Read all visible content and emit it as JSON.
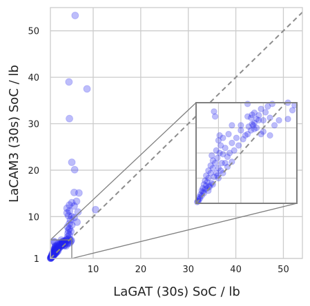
{
  "chart_data": {
    "type": "scatter",
    "title": "",
    "xlabel": "LaGAT (30s) SoC / lb",
    "ylabel": "LaCAM3 (30s) SoC / lb",
    "xlim": [
      1,
      54
    ],
    "ylim": [
      1,
      55
    ],
    "x_ticks": [
      10,
      20,
      30,
      40,
      50
    ],
    "y_ticks": [
      1,
      10,
      20,
      30,
      40,
      50
    ],
    "grid": true,
    "legend": "none",
    "reference_line": "y = x",
    "point_color": "#2424f0",
    "inset": {
      "xlim": [
        1,
        5.5
      ],
      "ylim": [
        1,
        5
      ],
      "placement": "right-middle"
    },
    "series": [
      {
        "values": [
          [
            6.2,
            53.3
          ],
          [
            4.9,
            39.0
          ],
          [
            8.7,
            37.5
          ],
          [
            5.0,
            31.1
          ],
          [
            5.5,
            21.7
          ],
          [
            6.1,
            20.1
          ],
          [
            6.0,
            15.2
          ],
          [
            7.0,
            15.1
          ],
          [
            6.5,
            13.3
          ],
          [
            5.5,
            13.0
          ],
          [
            5.0,
            12.5
          ],
          [
            4.5,
            11.8
          ],
          [
            6.0,
            12.3
          ],
          [
            10.5,
            11.5
          ],
          [
            5.0,
            11.2
          ],
          [
            6.8,
            11.0
          ],
          [
            4.5,
            10.8
          ],
          [
            4.8,
            10.2
          ],
          [
            5.5,
            10.0
          ],
          [
            6.0,
            9.8
          ],
          [
            5.2,
            9.3
          ],
          [
            6.6,
            8.8
          ],
          [
            5.0,
            8.5
          ],
          [
            5.5,
            8.2
          ],
          [
            4.6,
            7.8
          ],
          [
            5.0,
            7.4
          ],
          [
            4.8,
            7.0
          ],
          [
            5.3,
            6.8
          ],
          [
            4.7,
            6.4
          ],
          [
            5.0,
            6.0
          ],
          [
            4.6,
            5.6
          ],
          [
            4.9,
            5.3
          ],
          [
            4.5,
            5.1
          ],
          [
            5.1,
            5.0
          ],
          [
            3.3,
            4.95
          ],
          [
            4.4,
            4.95
          ],
          [
            4.2,
            4.85
          ],
          [
            3.9,
            4.75
          ],
          [
            1.8,
            4.65
          ],
          [
            4.1,
            4.62
          ],
          [
            3.5,
            4.52
          ],
          [
            1.85,
            4.45
          ],
          [
            3.3,
            4.45
          ],
          [
            3.45,
            4.4
          ],
          [
            3.7,
            4.35
          ],
          [
            3.8,
            4.3
          ],
          [
            4.3,
            4.4
          ],
          [
            4.7,
            4.3
          ],
          [
            5.1,
            4.35
          ],
          [
            3.6,
            4.2
          ],
          [
            3.5,
            4.15
          ],
          [
            3.55,
            4.1
          ],
          [
            3.35,
            4.05
          ],
          [
            3.0,
            4.1
          ],
          [
            2.6,
            4.1
          ],
          [
            3.7,
            4.0
          ],
          [
            3.6,
            3.95
          ],
          [
            3.45,
            3.9
          ],
          [
            4.0,
            3.85
          ],
          [
            3.9,
            3.75
          ],
          [
            4.3,
            3.7
          ],
          [
            3.3,
            3.75
          ],
          [
            2.45,
            3.75
          ],
          [
            2.05,
            3.7
          ],
          [
            2.2,
            3.6
          ],
          [
            2.0,
            3.5
          ],
          [
            2.1,
            3.3
          ],
          [
            2.3,
            3.2
          ],
          [
            2.6,
            3.4
          ],
          [
            1.9,
            3.1
          ],
          [
            2.05,
            3.0
          ],
          [
            2.2,
            2.95
          ],
          [
            1.7,
            2.9
          ],
          [
            1.95,
            2.8
          ],
          [
            1.75,
            2.7
          ],
          [
            1.85,
            2.6
          ],
          [
            1.65,
            2.5
          ],
          [
            1.75,
            2.4
          ],
          [
            1.55,
            2.3
          ],
          [
            1.65,
            2.2
          ],
          [
            1.45,
            2.1
          ],
          [
            1.55,
            2.0
          ],
          [
            1.4,
            1.9
          ],
          [
            1.5,
            1.85
          ],
          [
            1.35,
            1.75
          ],
          [
            1.45,
            1.7
          ],
          [
            1.3,
            1.6
          ],
          [
            1.4,
            1.55
          ],
          [
            1.25,
            1.5
          ],
          [
            1.3,
            1.45
          ],
          [
            1.2,
            1.35
          ],
          [
            1.25,
            1.3
          ],
          [
            1.15,
            1.25
          ],
          [
            1.18,
            1.2
          ],
          [
            1.1,
            1.15
          ],
          [
            1.12,
            1.1
          ],
          [
            1.08,
            1.08
          ],
          [
            1.05,
            1.05
          ],
          [
            1.6,
            1.7
          ],
          [
            1.7,
            1.8
          ],
          [
            1.8,
            2.05
          ],
          [
            1.9,
            2.2
          ],
          [
            2.0,
            2.4
          ],
          [
            2.15,
            2.6
          ],
          [
            2.4,
            2.85
          ],
          [
            2.7,
            3.1
          ],
          [
            2.9,
            3.3
          ],
          [
            3.1,
            3.55
          ],
          [
            3.2,
            3.7
          ],
          [
            1.5,
            1.6
          ],
          [
            1.6,
            1.65
          ],
          [
            1.35,
            1.4
          ],
          [
            1.95,
            2.1
          ],
          [
            2.1,
            2.3
          ],
          [
            2.3,
            2.6
          ],
          [
            2.5,
            3.0
          ],
          [
            2.8,
            3.6
          ],
          [
            3.0,
            3.9
          ],
          [
            3.6,
            4.6
          ],
          [
            3.8,
            4.5
          ],
          [
            4.0,
            4.3
          ],
          [
            4.5,
            4.1
          ],
          [
            5.3,
            4.7
          ],
          [
            5.4,
            4.9
          ],
          [
            2.0,
            2.0
          ],
          [
            2.2,
            2.2
          ],
          [
            2.4,
            2.45
          ],
          [
            2.6,
            2.65
          ],
          [
            1.55,
            1.5
          ],
          [
            1.75,
            1.75
          ]
        ]
      }
    ]
  }
}
